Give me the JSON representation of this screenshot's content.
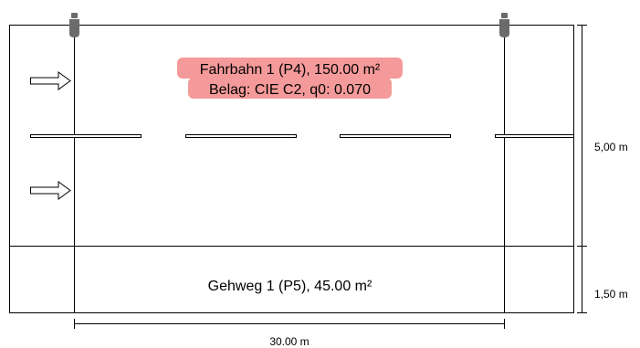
{
  "diagram": {
    "roadway": {
      "line1": "Fahrbahn 1 (P4), 150.00 m²",
      "line2": "Belag: CIE C2, q0: 0.070"
    },
    "sidewalk": {
      "label": "Gehweg 1 (P5), 45.00 m²"
    },
    "dimensions": {
      "roadway_width": "5,00 m",
      "sidewalk_width": "1,50 m",
      "pole_spacing": "30.00 m"
    },
    "colors": {
      "highlight": "#f59a9a",
      "line": "#000000",
      "luminaire": "#6b6b6b"
    }
  }
}
